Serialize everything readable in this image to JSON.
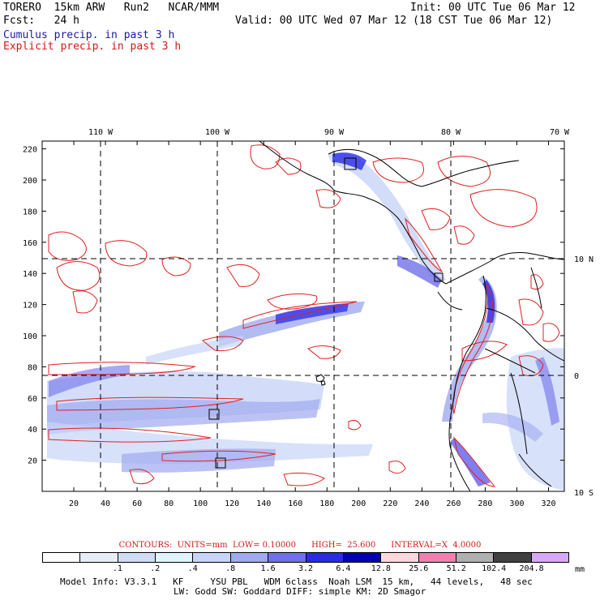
{
  "header": {
    "model": "TORERO  15km ARW   Run2   NCAR/MMM",
    "init": "Init: 00 UTC Tue 06 Mar 12",
    "fcst": "Fcst:   24 h",
    "valid": "Valid: 00 UTC Wed 07 Mar 12 (18 CST Tue 06 Mar 12)",
    "field1": "Cumulus precip. in past 3 h",
    "field2": "Explicit precip. in past 3 h"
  },
  "axes": {
    "top_lon_labels": [
      "110 W",
      "100 W",
      "90 W",
      "80 W",
      "70 W"
    ],
    "right_lat_labels": [
      "10 N",
      "0",
      "10 S"
    ],
    "y_ticks": [
      "220",
      "200",
      "180",
      "160",
      "140",
      "120",
      "100",
      "80",
      "60",
      "40",
      "20"
    ],
    "x_ticks": [
      "20",
      "40",
      "60",
      "80",
      "100",
      "120",
      "140",
      "160",
      "180",
      "200",
      "220",
      "240",
      "260",
      "280",
      "300",
      "320"
    ]
  },
  "contour_info": "CONTOURS:  UNITS=mm  LOW= 0.10000      HIGH=  25.600      INTERVAL=X  4.0000",
  "legend": {
    "colors": [
      "#ffffff",
      "#e8eef8",
      "#d0dcf4",
      "#e0f4ff",
      "#c8d4f8",
      "#a0aaf0",
      "#7070ea",
      "#2a2ae8",
      "#0000b0",
      "#ffd8dc",
      "#f080b0",
      "#b0b0b0",
      "#404040",
      "#d8a8f8"
    ],
    "labels": [
      ".1",
      ".2",
      ".4",
      ".8",
      "1.6",
      "3.2",
      "6.4",
      "12.8",
      "25.6",
      "51.2",
      "102.4",
      "204.8"
    ],
    "unit": "mm"
  },
  "footer": {
    "line1": "Model Info: V3.3.1   KF     YSU PBL   WDM 6class  Noah LSM  15 km,   44 levels,   48 sec",
    "line2": "LW: Godd SW: Goddard DIFF: simple KM: 2D Smagor"
  },
  "map_data": {
    "extent_lon": [
      -115,
      -70
    ],
    "extent_lat": [
      -10,
      15
    ],
    "grid_x_range": [
      0,
      330
    ],
    "grid_y_range": [
      0,
      225
    ]
  }
}
